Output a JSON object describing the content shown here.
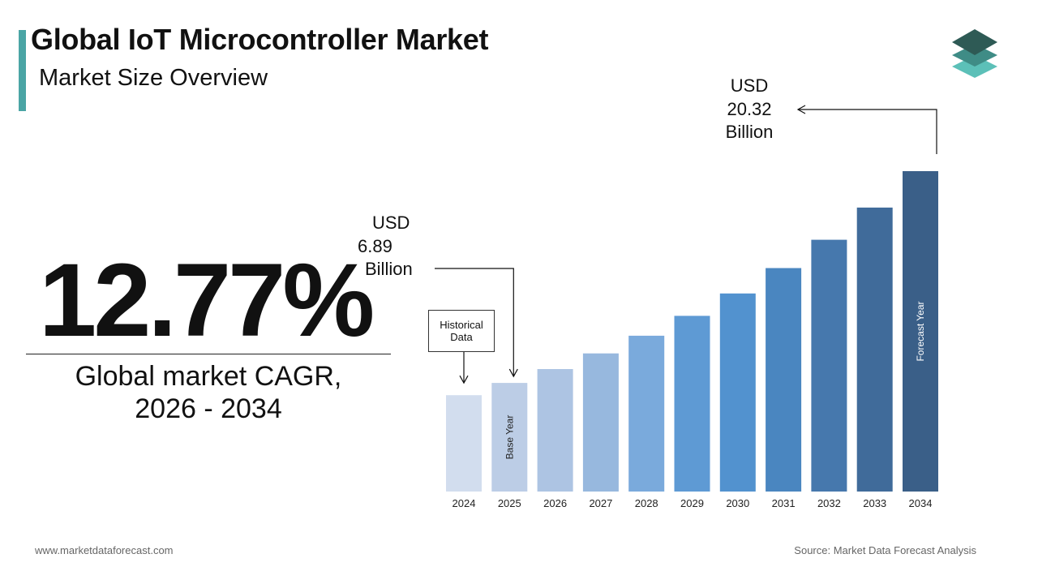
{
  "header": {
    "title": "Global IoT Microcontroller Market",
    "subtitle": "Market Size Overview"
  },
  "kpi": {
    "cagr_value": "12.77%",
    "cagr_label_line1": "Global market CAGR,",
    "cagr_label_line2": "2026 - 2034"
  },
  "callouts": {
    "start": {
      "currency": "USD",
      "value": "6.89",
      "unit": "Billion",
      "year": "2025"
    },
    "end": {
      "currency": "USD",
      "value": "20.32",
      "unit": "Billion",
      "year": "2034"
    },
    "historical_line1": "Historical",
    "historical_line2": "Data"
  },
  "chart_data": {
    "type": "bar",
    "categories": [
      "2024",
      "2025",
      "2026",
      "2027",
      "2028",
      "2029",
      "2030",
      "2031",
      "2032",
      "2033",
      "2034"
    ],
    "values": [
      6.11,
      6.89,
      7.77,
      8.76,
      9.88,
      11.14,
      12.56,
      14.17,
      15.97,
      18.01,
      20.32
    ],
    "ylim": [
      0,
      20.32
    ],
    "bar_labels": {
      "2025": "Base Year",
      "2034": "Forecast Year"
    },
    "colors": [
      "#d2ddee",
      "#bccde6",
      "#adc4e3",
      "#97b8de",
      "#7aaadc",
      "#5e9ad4",
      "#5292cf",
      "#4a86c0",
      "#4678ad",
      "#406b9a",
      "#3a5f88"
    ],
    "legend": false,
    "grid": false
  },
  "footer": {
    "website": "www.marketdataforecast.com",
    "source": "Source: Market Data Forecast Analysis"
  },
  "colors": {
    "accent": "#4aa5a5",
    "logo_top": "#2e5a55",
    "logo_mid": "#3f8c86",
    "logo_bottom": "#5cc0b8"
  }
}
